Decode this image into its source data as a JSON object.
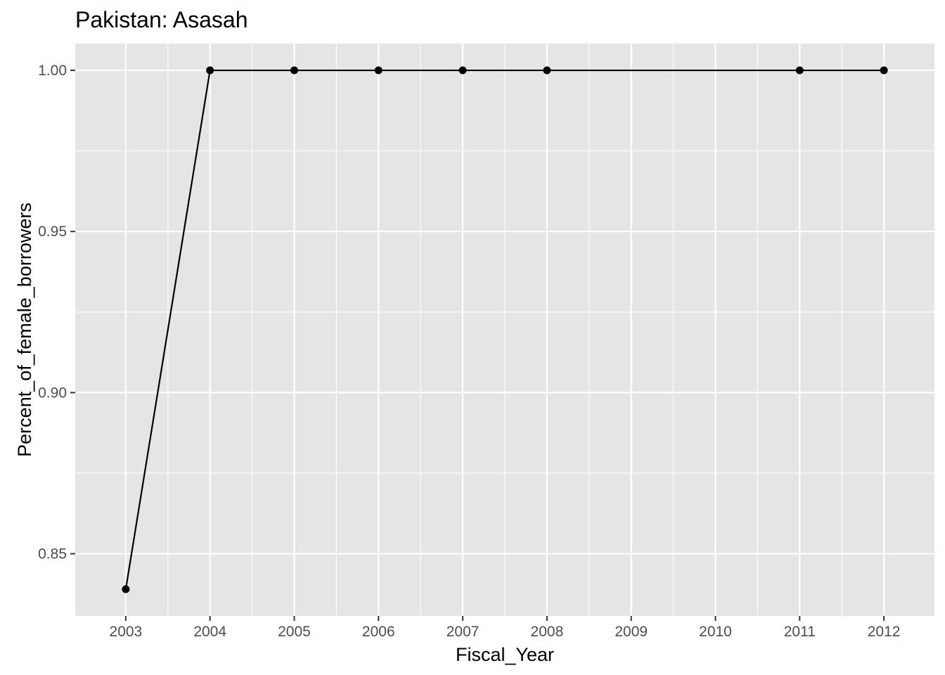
{
  "chart_data": {
    "type": "line",
    "title": "Pakistan:  Asasah",
    "xlabel": "Fiscal_Year",
    "ylabel": "Percent_of_female_borrowers",
    "x_categories": [
      "2003",
      "2004",
      "2005",
      "2006",
      "2007",
      "2008",
      "2009",
      "2010",
      "2011",
      "2012"
    ],
    "y_ticks": [
      0.85,
      0.9,
      0.95,
      1.0
    ],
    "y_tick_labels": [
      "0.85",
      "0.90",
      "0.95",
      "1.00"
    ],
    "ylim": [
      0.8307,
      1.0083
    ],
    "grid": true,
    "colors": {
      "panel_background": "#e5e5e5",
      "grid": "#ffffff",
      "series": "#000000",
      "tick_label": "#4d4d4d"
    },
    "series": [
      {
        "x": [
          "2003",
          "2004",
          "2005",
          "2006",
          "2007",
          "2008",
          "2011",
          "2012"
        ],
        "y": [
          0.839,
          1.0,
          1.0,
          1.0,
          1.0,
          1.0,
          1.0,
          1.0
        ]
      }
    ]
  }
}
